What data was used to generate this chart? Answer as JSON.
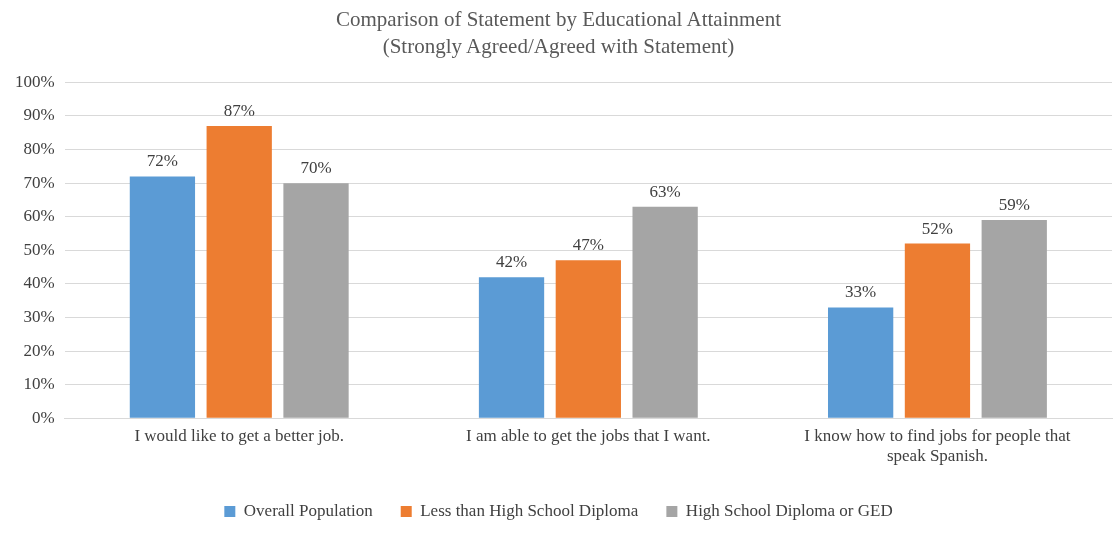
{
  "chart_data": {
    "type": "bar",
    "title": "Comparison of Statement by Educational Attainment",
    "subtitle": "(Strongly Agreed/Agreed with Statement)",
    "categories": [
      "I would like to get a better job.",
      "I am able to get the jobs that I want.",
      "I know how to find jobs for people that speak Spanish."
    ],
    "series": [
      {
        "name": "Overall Population",
        "color": "#5b9bd5",
        "values": [
          72,
          42,
          33
        ],
        "value_labels": [
          "72%",
          "42%",
          "33%"
        ]
      },
      {
        "name": "Less than High School Diploma",
        "color": "#ed7d31",
        "values": [
          87,
          47,
          52
        ],
        "value_labels": [
          "87%",
          "47%",
          "52%"
        ]
      },
      {
        "name": "High School Diploma or GED",
        "color": "#a5a5a5",
        "values": [
          70,
          63,
          59
        ],
        "value_labels": [
          "70%",
          "63%",
          "59%"
        ]
      }
    ],
    "ylim": [
      0,
      100
    ],
    "yticks": [
      {
        "value": 0,
        "label": "0%"
      },
      {
        "value": 10,
        "label": "10%"
      },
      {
        "value": 20,
        "label": "20%"
      },
      {
        "value": 30,
        "label": "30%"
      },
      {
        "value": 40,
        "label": "40%"
      },
      {
        "value": 50,
        "label": "50%"
      },
      {
        "value": 60,
        "label": "60%"
      },
      {
        "value": 70,
        "label": "70%"
      },
      {
        "value": 80,
        "label": "80%"
      },
      {
        "value": 90,
        "label": "90%"
      },
      {
        "value": 100,
        "label": "100%"
      }
    ],
    "grid": "y",
    "legend": "bottom"
  }
}
